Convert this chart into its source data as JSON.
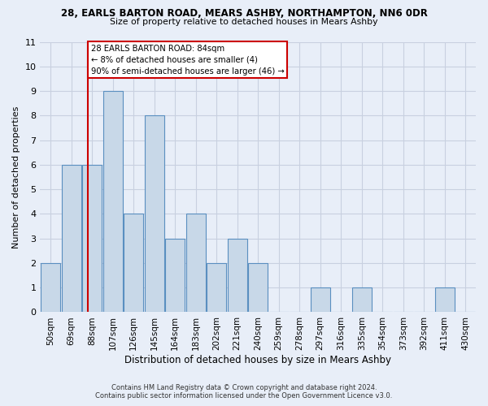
{
  "title1": "28, EARLS BARTON ROAD, MEARS ASHBY, NORTHAMPTON, NN6 0DR",
  "title2": "Size of property relative to detached houses in Mears Ashby",
  "xlabel": "Distribution of detached houses by size in Mears Ashby",
  "ylabel": "Number of detached properties",
  "footnote1": "Contains HM Land Registry data © Crown copyright and database right 2024.",
  "footnote2": "Contains public sector information licensed under the Open Government Licence v3.0.",
  "categories": [
    "50sqm",
    "69sqm",
    "88sqm",
    "107sqm",
    "126sqm",
    "145sqm",
    "164sqm",
    "183sqm",
    "202sqm",
    "221sqm",
    "240sqm",
    "259sqm",
    "278sqm",
    "297sqm",
    "316sqm",
    "335sqm",
    "354sqm",
    "373sqm",
    "392sqm",
    "411sqm",
    "430sqm"
  ],
  "values": [
    2,
    6,
    6,
    9,
    4,
    8,
    3,
    4,
    2,
    3,
    2,
    0,
    0,
    1,
    0,
    1,
    0,
    0,
    0,
    1,
    0
  ],
  "bar_color": "#c8d8e8",
  "bar_edge_color": "#5a8fc0",
  "grid_color": "#c8d0e0",
  "background_color": "#e8eef8",
  "vline_color": "#cc0000",
  "annotation_text": "28 EARLS BARTON ROAD: 84sqm\n← 8% of detached houses are smaller (4)\n90% of semi-detached houses are larger (46) →",
  "annotation_box_color": "#ffffff",
  "annotation_box_edge": "#cc0000",
  "ylim": [
    0,
    11
  ],
  "yticks": [
    0,
    1,
    2,
    3,
    4,
    5,
    6,
    7,
    8,
    9,
    10,
    11
  ]
}
